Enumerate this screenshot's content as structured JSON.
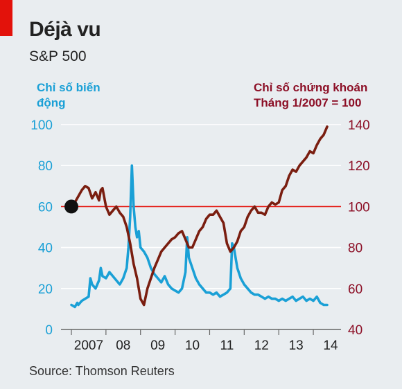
{
  "header": {
    "title": "Déjà vu",
    "subtitle": "S&P 500"
  },
  "footer": {
    "source": "Source: Thomson Reuters"
  },
  "colors": {
    "vix": "#1aa0d6",
    "sp500": "#7a1e10",
    "reference": "#e3120b",
    "marker": "#111111",
    "brand": "#e3120b"
  },
  "chart_data": {
    "type": "line",
    "left_axis_label": [
      "Chỉ số biến",
      "động"
    ],
    "right_axis_label": [
      "Chỉ số chứng khoán",
      "Tháng 1/2007 = 100"
    ],
    "x_ticks": [
      "2007",
      "08",
      "09",
      "10",
      "11",
      "12",
      "13",
      "14"
    ],
    "left_ticks": [
      "100",
      "80",
      "60",
      "40",
      "20",
      "0"
    ],
    "right_ticks": [
      "140",
      "120",
      "100",
      "80",
      "60",
      "40"
    ],
    "left_ylim": [
      0,
      100
    ],
    "right_ylim": [
      40,
      140
    ],
    "xlim": [
      2007.0,
      2014.5
    ],
    "reference_line_right_value": 100,
    "marker": {
      "x": 2007.0,
      "right_value": 100
    },
    "grid": "horizontal",
    "series": [
      {
        "axis": "left",
        "x": [
          2007.0,
          2007.1,
          2007.17,
          2007.2,
          2007.3,
          2007.4,
          2007.5,
          2007.55,
          2007.6,
          2007.7,
          2007.8,
          2007.85,
          2007.9,
          2008.0,
          2008.1,
          2008.2,
          2008.3,
          2008.4,
          2008.5,
          2008.6,
          2008.65,
          2008.7,
          2008.75,
          2008.8,
          2008.85,
          2008.9,
          2008.95,
          2009.0,
          2009.1,
          2009.2,
          2009.3,
          2009.4,
          2009.5,
          2009.6,
          2009.7,
          2009.8,
          2009.9,
          2010.0,
          2010.1,
          2010.2,
          2010.3,
          2010.35,
          2010.4,
          2010.5,
          2010.6,
          2010.7,
          2010.8,
          2010.9,
          2011.0,
          2011.1,
          2011.2,
          2011.3,
          2011.4,
          2011.5,
          2011.6,
          2011.65,
          2011.7,
          2011.8,
          2011.9,
          2012.0,
          2012.1,
          2012.2,
          2012.3,
          2012.4,
          2012.5,
          2012.6,
          2012.7,
          2012.8,
          2012.9,
          2013.0,
          2013.1,
          2013.2,
          2013.3,
          2013.4,
          2013.5,
          2013.6,
          2013.7,
          2013.8,
          2013.9,
          2014.0,
          2014.1,
          2014.2,
          2014.3,
          2014.4
        ],
        "values": [
          12,
          11,
          13,
          12,
          14,
          15,
          16,
          25,
          22,
          20,
          24,
          30,
          26,
          25,
          28,
          26,
          24,
          22,
          25,
          30,
          40,
          55,
          80,
          60,
          50,
          45,
          48,
          40,
          38,
          35,
          30,
          27,
          25,
          23,
          26,
          22,
          20,
          19,
          18,
          20,
          28,
          45,
          35,
          30,
          25,
          22,
          20,
          18,
          18,
          17,
          18,
          16,
          17,
          18,
          20,
          42,
          40,
          30,
          25,
          22,
          20,
          18,
          17,
          17,
          16,
          15,
          16,
          15,
          15,
          14,
          15,
          14,
          15,
          16,
          14,
          15,
          16,
          14,
          15,
          14,
          16,
          13,
          12,
          12
        ]
      },
      {
        "axis": "right",
        "x": [
          2007.0,
          2007.1,
          2007.2,
          2007.3,
          2007.4,
          2007.5,
          2007.6,
          2007.7,
          2007.8,
          2007.85,
          2007.9,
          2008.0,
          2008.1,
          2008.2,
          2008.3,
          2008.4,
          2008.5,
          2008.6,
          2008.7,
          2008.8,
          2008.9,
          2009.0,
          2009.1,
          2009.2,
          2009.3,
          2009.4,
          2009.5,
          2009.6,
          2009.7,
          2009.8,
          2009.9,
          2010.0,
          2010.1,
          2010.2,
          2010.3,
          2010.4,
          2010.5,
          2010.6,
          2010.7,
          2010.8,
          2010.9,
          2011.0,
          2011.1,
          2011.2,
          2011.3,
          2011.4,
          2011.5,
          2011.6,
          2011.7,
          2011.8,
          2011.9,
          2012.0,
          2012.1,
          2012.2,
          2012.3,
          2012.4,
          2012.5,
          2012.6,
          2012.7,
          2012.8,
          2012.9,
          2013.0,
          2013.1,
          2013.2,
          2013.3,
          2013.4,
          2013.5,
          2013.6,
          2013.7,
          2013.8,
          2013.9,
          2014.0,
          2014.1,
          2014.2,
          2014.3,
          2014.4
        ],
        "values": [
          100,
          102,
          105,
          108,
          110,
          109,
          104,
          107,
          103,
          108,
          109,
          100,
          96,
          98,
          100,
          97,
          95,
          90,
          82,
          72,
          65,
          55,
          52,
          60,
          65,
          70,
          74,
          78,
          80,
          82,
          84,
          85,
          87,
          88,
          84,
          80,
          80,
          84,
          88,
          90,
          94,
          96,
          96,
          98,
          95,
          92,
          82,
          78,
          80,
          83,
          88,
          90,
          95,
          98,
          100,
          97,
          97,
          96,
          100,
          102,
          101,
          102,
          108,
          110,
          115,
          118,
          117,
          120,
          122,
          124,
          127,
          126,
          130,
          133,
          135,
          139
        ]
      }
    ]
  }
}
